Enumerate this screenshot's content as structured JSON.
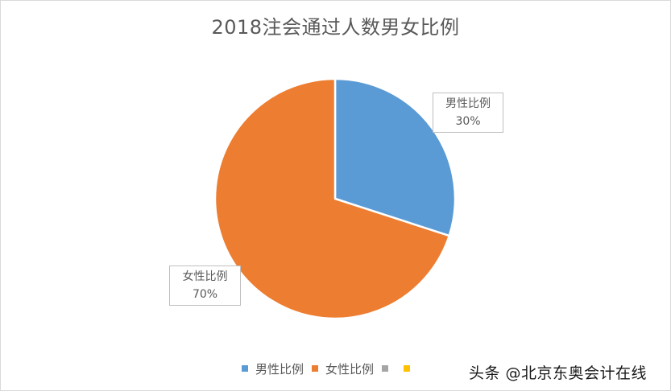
{
  "chart_data": {
    "type": "pie",
    "title": "2018注会通过人数男女比例",
    "categories": [
      "男性比例",
      "女性比例",
      "",
      ""
    ],
    "values": [
      30,
      70
    ],
    "units": "%",
    "series": [
      {
        "name": "男性比例",
        "value": 30,
        "label": "30%",
        "color": "#5b9bd5"
      },
      {
        "name": "女性比例",
        "value": 70,
        "label": "70%",
        "color": "#ed7d31"
      }
    ],
    "start_angle_deg": 0,
    "direction": "clockwise",
    "data_labels": true,
    "legend_position": "bottom",
    "legend": [
      {
        "name": "男性比例",
        "color": "#5b9bd5"
      },
      {
        "name": "女性比例",
        "color": "#ed7d31"
      },
      {
        "name": "",
        "color": "#a5a5a5"
      },
      {
        "name": "",
        "color": "#ffc000"
      }
    ]
  },
  "labels": {
    "male": {
      "name": "男性比例",
      "value": "30%"
    },
    "female": {
      "name": "女性比例",
      "value": "70%"
    }
  },
  "watermark": "头条 @北京东奥会计在线"
}
